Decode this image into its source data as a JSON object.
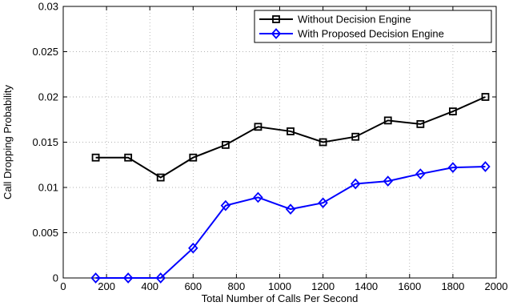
{
  "chart_data": {
    "type": "line",
    "title": "",
    "xlabel": "Total Number of Calls Per Second",
    "ylabel": "Call Dropping Probability",
    "xlim": [
      0,
      2000
    ],
    "ylim": [
      0,
      0.03
    ],
    "x_ticks": [
      0,
      200,
      400,
      600,
      800,
      1000,
      1200,
      1400,
      1600,
      1800,
      2000
    ],
    "y_ticks": [
      0,
      0.005,
      0.01,
      0.015,
      0.02,
      0.025,
      0.03
    ],
    "y_tick_labels": [
      "0",
      "0.005",
      "0.01",
      "0.015",
      "0.02",
      "0.025",
      "0.03"
    ],
    "grid": true,
    "legend_position": "top-right",
    "x": [
      150,
      300,
      450,
      600,
      750,
      900,
      1050,
      1200,
      1350,
      1500,
      1650,
      1800,
      1950
    ],
    "series": [
      {
        "name": "Without Decision Engine",
        "color": "#000000",
        "marker": "square",
        "values": [
          0.0133,
          0.0133,
          0.0111,
          0.0133,
          0.0147,
          0.0167,
          0.0162,
          0.015,
          0.0156,
          0.0174,
          0.017,
          0.0184,
          0.02
        ]
      },
      {
        "name": "With Proposed Decision Engine",
        "color": "#0000ff",
        "marker": "diamond",
        "values": [
          0,
          0,
          0,
          0.0033,
          0.008,
          0.0089,
          0.0076,
          0.0083,
          0.0104,
          0.0107,
          0.0115,
          0.0122,
          0.0123
        ]
      }
    ]
  }
}
